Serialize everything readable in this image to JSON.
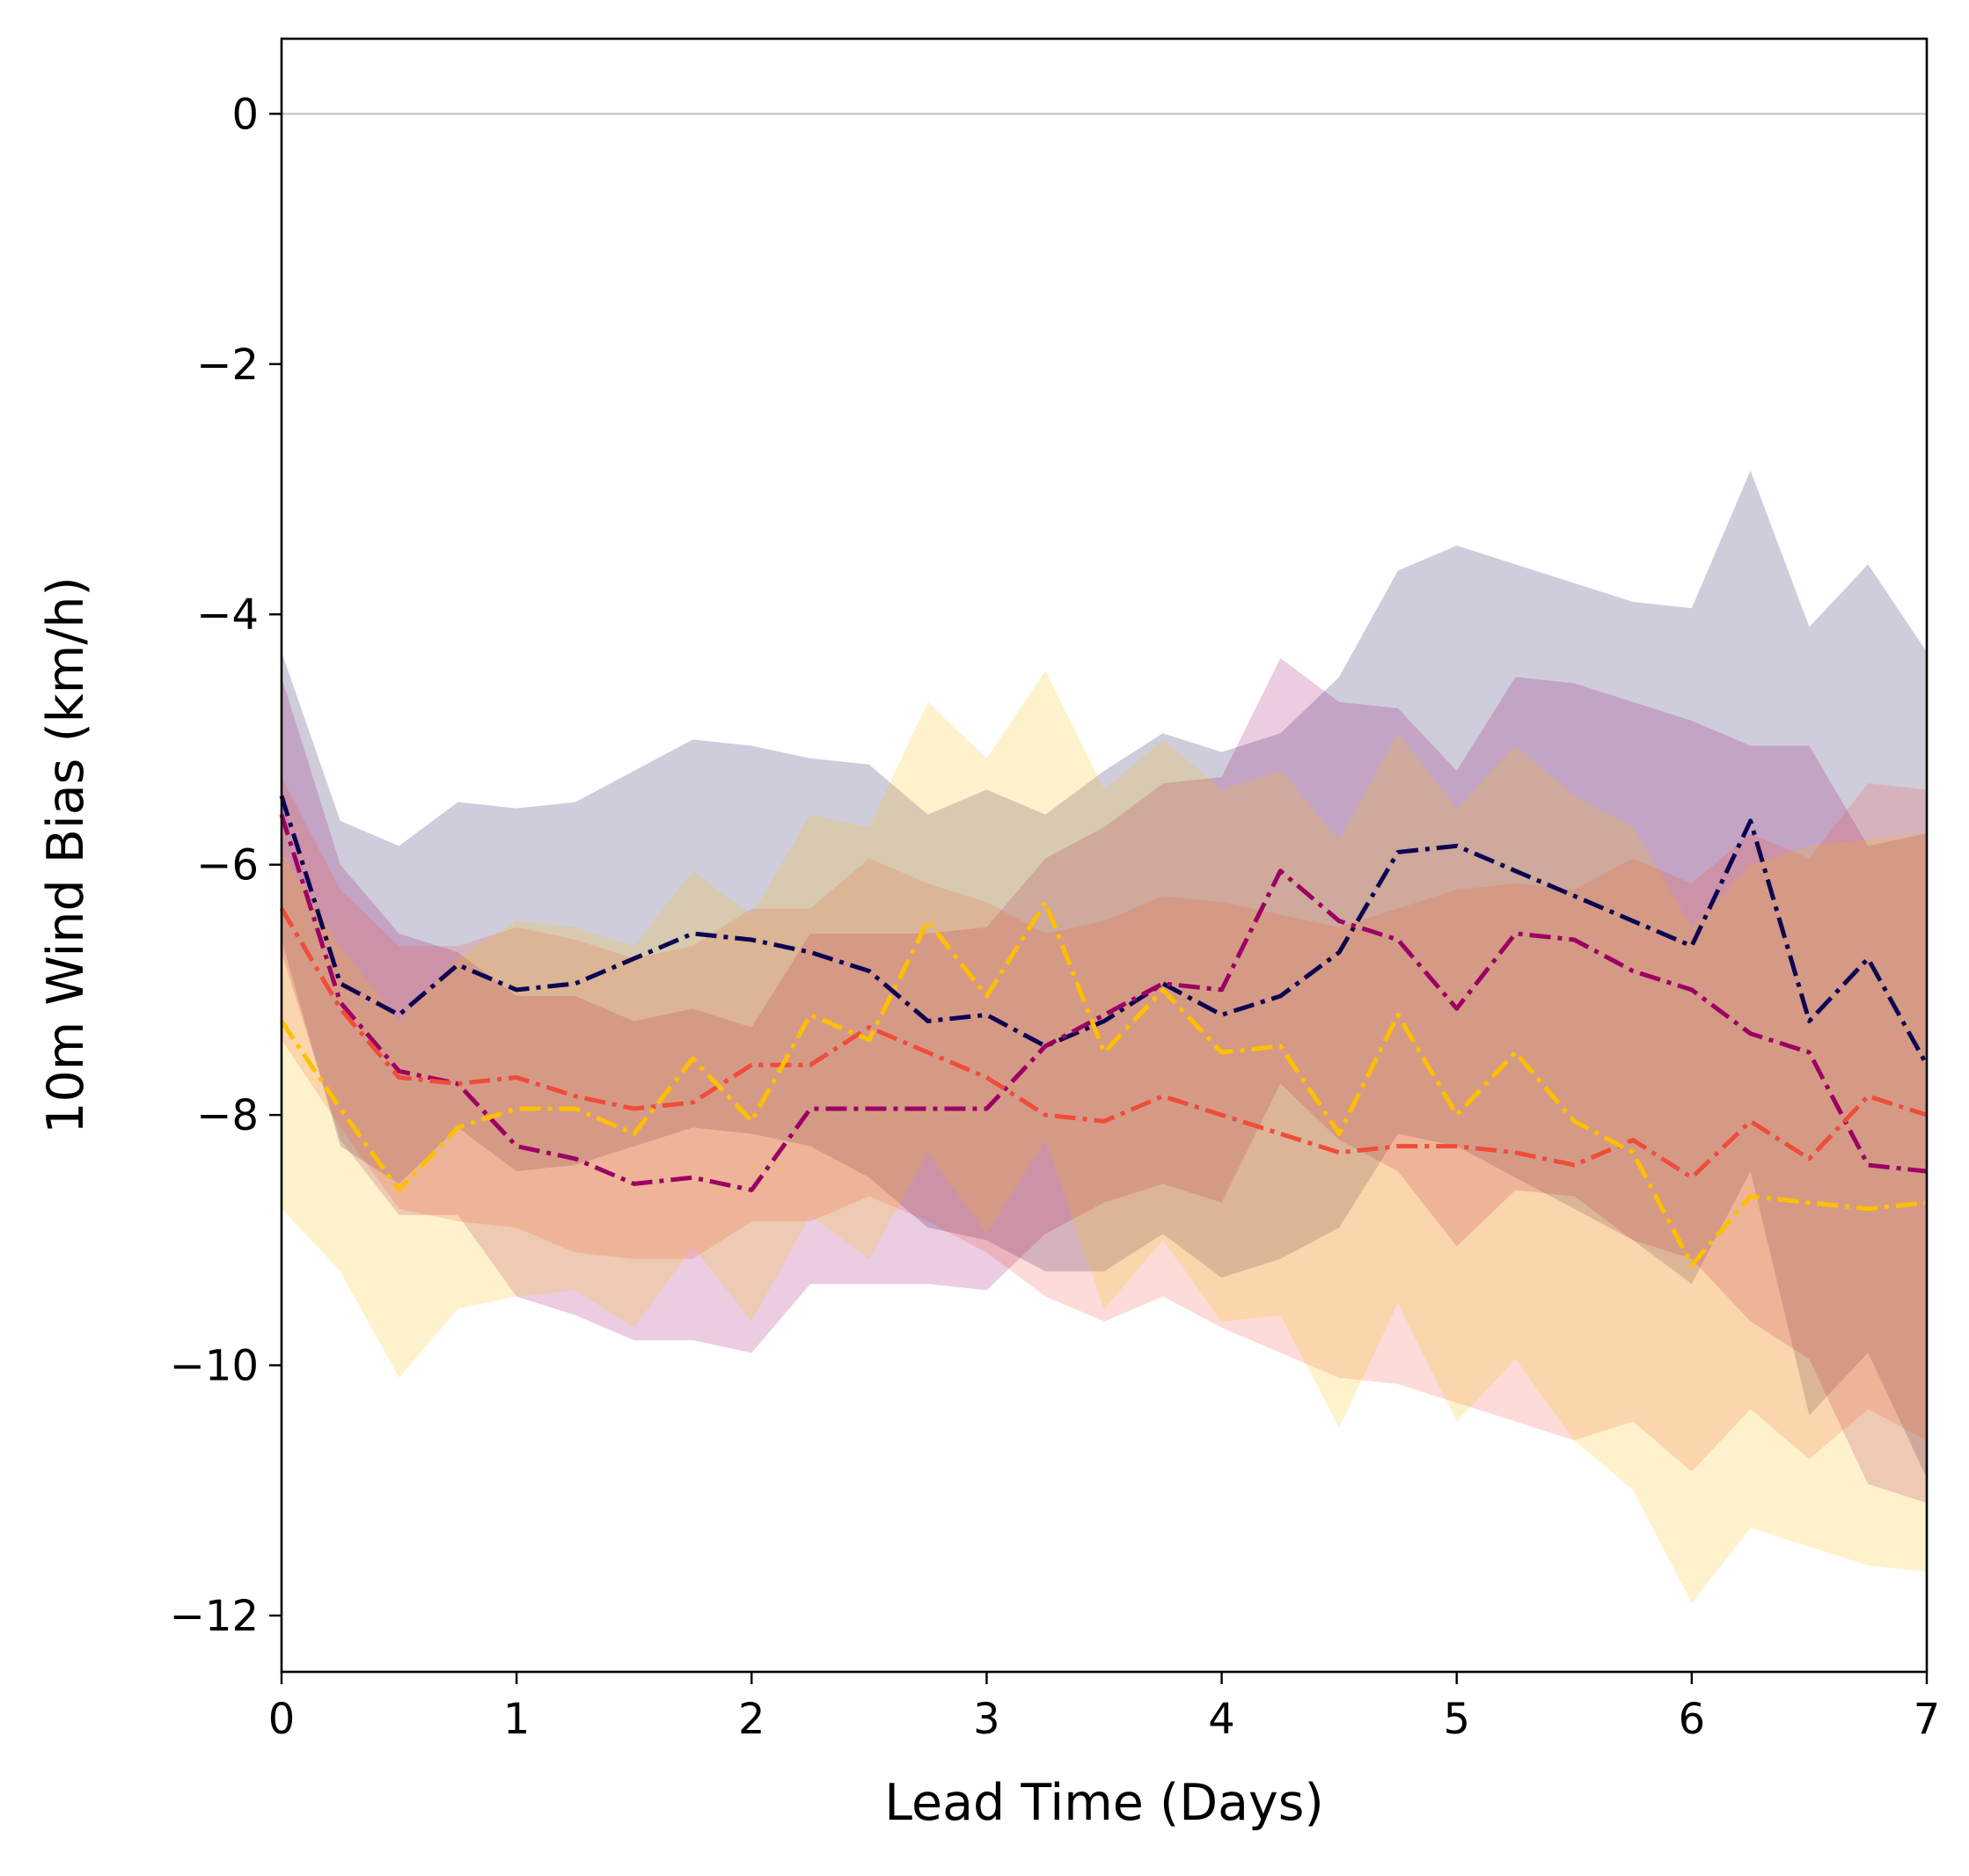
{
  "chart_data": {
    "type": "line",
    "title": "",
    "xlabel": "Lead Time (Days)",
    "ylabel": "10m Wind Bias (km/h)",
    "xlim": [
      0,
      7
    ],
    "ylim": [
      -12.45,
      0.6
    ],
    "x_ticks": [
      0,
      1,
      2,
      3,
      4,
      5,
      6,
      7
    ],
    "y_ticks": [
      0,
      -2,
      -4,
      -6,
      -8,
      -10,
      -12
    ],
    "x_tick_labels": [
      "0",
      "1",
      "2",
      "3",
      "4",
      "5",
      "6",
      "7"
    ],
    "y_tick_labels": [
      "0",
      "−2",
      "−4",
      "−6",
      "−8",
      "−10",
      "−12"
    ],
    "grid": false,
    "legend": false,
    "reference_line": {
      "y": 0,
      "color": "#bfbfbf"
    },
    "x": [
      0,
      0.25,
      0.5,
      0.75,
      1,
      1.25,
      1.5,
      1.75,
      2,
      2.25,
      2.5,
      2.75,
      3,
      3.25,
      3.5,
      3.75,
      4,
      4.25,
      4.5,
      4.75,
      5,
      5.25,
      5.5,
      5.75,
      6,
      6.25,
      6.5,
      6.75,
      7
    ],
    "series": [
      {
        "color": "#0d0451",
        "band_alpha": 0.2,
        "values": [
          -5.45,
          -6.95,
          -7.2,
          -6.8,
          -7.0,
          -6.95,
          -6.75,
          -6.55,
          -6.6,
          -6.7,
          -6.85,
          -7.25,
          -7.2,
          -7.45,
          -7.25,
          -6.95,
          -7.2,
          -7.05,
          -6.7,
          -5.9,
          -5.85,
          -6.05,
          -6.25,
          -6.45,
          -6.65,
          -5.65,
          -7.25,
          -6.75,
          -7.6
        ],
        "upper": [
          -4.3,
          -5.65,
          -5.85,
          -5.5,
          -5.55,
          -5.5,
          -5.25,
          -5.0,
          -5.05,
          -5.15,
          -5.2,
          -5.6,
          -5.4,
          -5.6,
          -5.25,
          -4.95,
          -5.1,
          -4.95,
          -4.5,
          -3.65,
          -3.45,
          -3.6,
          -3.75,
          -3.9,
          -3.95,
          -2.85,
          -4.1,
          -3.6,
          -4.3
        ],
        "lower": [
          -6.6,
          -8.25,
          -8.55,
          -8.1,
          -8.45,
          -8.4,
          -8.25,
          -8.1,
          -8.15,
          -8.25,
          -8.5,
          -8.9,
          -9.0,
          -9.25,
          -9.25,
          -8.95,
          -9.3,
          -9.15,
          -8.9,
          -8.15,
          -8.25,
          -8.5,
          -8.75,
          -9.0,
          -9.35,
          -8.45,
          -10.4,
          -9.9,
          -10.9
        ]
      },
      {
        "color": "#9b0063",
        "band_alpha": 0.2,
        "values": [
          -5.6,
          -7.1,
          -7.65,
          -7.75,
          -8.25,
          -8.35,
          -8.55,
          -8.5,
          -8.6,
          -7.95,
          -7.95,
          -7.95,
          -7.95,
          -7.45,
          -7.2,
          -6.95,
          -7.0,
          -6.05,
          -6.45,
          -6.6,
          -7.15,
          -6.55,
          -6.6,
          -6.85,
          -7.0,
          -7.35,
          -7.5,
          -8.4,
          -8.45
        ],
        "upper": [
          -4.5,
          -6.0,
          -6.55,
          -6.7,
          -7.05,
          -7.05,
          -7.25,
          -7.15,
          -7.3,
          -6.55,
          -6.55,
          -6.55,
          -6.5,
          -5.95,
          -5.7,
          -5.35,
          -5.3,
          -4.35,
          -4.7,
          -4.75,
          -5.25,
          -4.5,
          -4.55,
          -4.7,
          -4.85,
          -5.05,
          -5.05,
          -5.85,
          -5.75
        ],
        "lower": [
          -6.7,
          -8.2,
          -8.8,
          -8.8,
          -9.45,
          -9.6,
          -9.8,
          -9.8,
          -9.9,
          -9.35,
          -9.35,
          -9.35,
          -9.4,
          -8.95,
          -8.7,
          -8.55,
          -8.7,
          -7.75,
          -8.2,
          -8.45,
          -9.05,
          -8.6,
          -8.65,
          -9.0,
          -9.15,
          -9.65,
          -9.95,
          -10.95,
          -11.1
        ]
      },
      {
        "color": "#ef4c3a",
        "band_alpha": 0.2,
        "values": [
          -6.35,
          -7.15,
          -7.7,
          -7.75,
          -7.7,
          -7.85,
          -7.95,
          -7.9,
          -7.6,
          -7.6,
          -7.3,
          -7.5,
          -7.7,
          -8.0,
          -8.05,
          -7.85,
          -8.0,
          -8.15,
          -8.3,
          -8.25,
          -8.25,
          -8.3,
          -8.4,
          -8.2,
          -8.5,
          -8.05,
          -8.35,
          -7.85,
          -8.0
        ],
        "upper": [
          -5.3,
          -6.2,
          -6.65,
          -6.65,
          -6.5,
          -6.6,
          -6.75,
          -6.65,
          -6.35,
          -6.35,
          -5.95,
          -6.15,
          -6.3,
          -6.55,
          -6.45,
          -6.25,
          -6.3,
          -6.4,
          -6.5,
          -6.35,
          -6.2,
          -6.15,
          -6.2,
          -5.95,
          -6.15,
          -5.75,
          -5.95,
          -5.35,
          -5.4
        ],
        "lower": [
          -7.4,
          -8.1,
          -8.75,
          -8.85,
          -8.9,
          -9.1,
          -9.15,
          -9.15,
          -8.85,
          -8.85,
          -8.65,
          -8.85,
          -9.1,
          -9.45,
          -9.65,
          -9.45,
          -9.7,
          -9.9,
          -10.1,
          -10.15,
          -10.3,
          -10.45,
          -10.6,
          -10.45,
          -10.85,
          -10.35,
          -10.75,
          -10.35,
          -10.6
        ]
      },
      {
        "color": "#fcc000",
        "band_alpha": 0.2,
        "values": [
          -7.25,
          -7.95,
          -8.6,
          -8.1,
          -7.95,
          -7.95,
          -8.15,
          -7.55,
          -8.05,
          -7.2,
          -7.4,
          -6.45,
          -7.05,
          -6.3,
          -7.5,
          -7.0,
          -7.5,
          -7.45,
          -8.15,
          -7.2,
          -8.0,
          -7.5,
          -8.05,
          -8.3,
          -9.2,
          -8.65,
          -8.7,
          -8.75,
          -8.7
        ],
        "upper": [
          -5.9,
          -6.65,
          -7.25,
          -6.75,
          -6.45,
          -6.5,
          -6.65,
          -6.05,
          -6.4,
          -5.6,
          -5.7,
          -4.7,
          -5.15,
          -4.45,
          -5.4,
          -5.0,
          -5.4,
          -5.25,
          -5.8,
          -4.95,
          -5.55,
          -5.05,
          -5.45,
          -5.7,
          -6.5,
          -6.0,
          -5.85,
          -5.8,
          -5.75
        ],
        "lower": [
          -8.75,
          -9.25,
          -10.1,
          -9.55,
          -9.45,
          -9.4,
          -9.7,
          -9.05,
          -9.65,
          -8.8,
          -9.15,
          -8.3,
          -8.95,
          -8.2,
          -9.55,
          -9.0,
          -9.65,
          -9.6,
          -10.5,
          -9.5,
          -10.45,
          -9.95,
          -10.6,
          -11.0,
          -11.9,
          -11.3,
          -11.45,
          -11.6,
          -11.65
        ]
      }
    ]
  }
}
